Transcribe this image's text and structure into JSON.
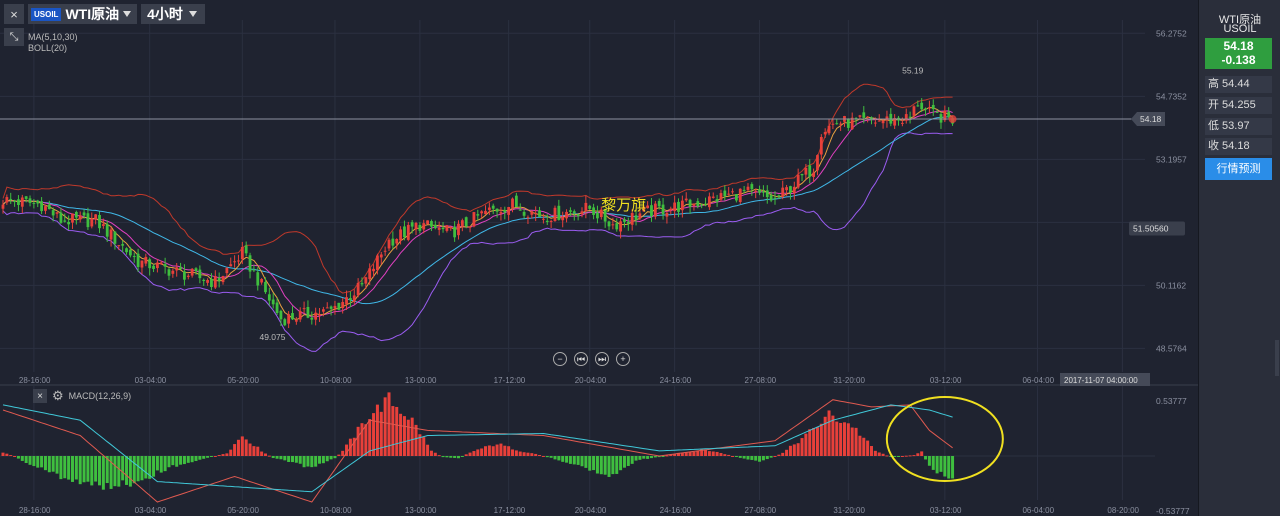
{
  "toolbar": {
    "close_label": "×",
    "symbol_badge": "USOIL",
    "symbol_name": "WTI原油",
    "period": "4小时",
    "expand_label": "⤡"
  },
  "indicators": {
    "ma": "MA(5,10,30)",
    "boll": "BOLL(20)",
    "macd": "MACD(12,26,9)"
  },
  "watermark": "黎万旗",
  "crosshair_time": "2017-11-07 04:00:00",
  "side_panel": {
    "name": "WTI原油",
    "code": "USOIL",
    "price": "54.18",
    "change": "-0.138",
    "high": "高 54.44",
    "open": "开 54.255",
    "low": "低 53.97",
    "close": "收 54.18",
    "forecast_button": "行情预测"
  },
  "colors": {
    "up": "#e8403a",
    "down": "#3fbf3f",
    "boll": "#9a5cf0",
    "ma5": "#e8a040",
    "ma10": "#e040c0",
    "ma30": "#40b8e8",
    "highlight": "#f0e020"
  },
  "chart_data": [
    {
      "type": "candlestick",
      "title": "",
      "y_ticks": [
        "56.2752",
        "54.7352",
        "53.1957",
        "51.6560",
        "50.1162",
        "48.5764"
      ],
      "y_range": [
        48.0,
        56.6
      ],
      "x_ticks": [
        "28-16:00",
        "03-04:00",
        "05-20:00",
        "10-08:00",
        "13-00:00",
        "17-12:00",
        "20-04:00",
        "24-16:00",
        "27-08:00",
        "31-20:00",
        "03-12:00",
        "06-04:00",
        "08-20:00"
      ],
      "current_price": "54.18",
      "price_tag": "51.50560",
      "annotations": {
        "high": "55.19",
        "low": "49.075"
      },
      "close_keypoints": [
        [
          0,
          52.2
        ],
        [
          10,
          52.1
        ],
        [
          15,
          51.7
        ],
        [
          24,
          51.7
        ],
        [
          35,
          50.7
        ],
        [
          55,
          50.2
        ],
        [
          62,
          50.9
        ],
        [
          72,
          49.3
        ],
        [
          85,
          49.5
        ],
        [
          93,
          50.1
        ],
        [
          100,
          51.2
        ],
        [
          108,
          51.6
        ],
        [
          116,
          51.4
        ],
        [
          125,
          51.9
        ],
        [
          132,
          52.1
        ],
        [
          140,
          51.8
        ],
        [
          152,
          52.0
        ],
        [
          158,
          51.6
        ],
        [
          166,
          51.9
        ],
        [
          178,
          52.1
        ],
        [
          192,
          52.4
        ],
        [
          200,
          52.2
        ],
        [
          210,
          53.0
        ],
        [
          212,
          53.9
        ],
        [
          216,
          54.1
        ],
        [
          222,
          54.1
        ],
        [
          228,
          54.15
        ],
        [
          235,
          54.2
        ],
        [
          237,
          54.6
        ],
        [
          240,
          54.3
        ],
        [
          246,
          54.18
        ]
      ],
      "candle_count": 247
    },
    {
      "type": "macd",
      "title": "",
      "y_ticks": [
        "0.53777",
        "-0.53777"
      ],
      "x_ticks": [
        "28-16:00",
        "03-04:00",
        "05-20:00",
        "10-08:00",
        "13-00:00",
        "17-12:00",
        "20-04:00",
        "24-16:00",
        "27-08:00",
        "31-20:00",
        "03-12:00",
        "06-04:00",
        "08-20:00"
      ],
      "histogram_keypoints": [
        [
          0,
          0.03
        ],
        [
          3,
          0
        ],
        [
          5,
          -0.05
        ],
        [
          15,
          -0.2
        ],
        [
          25,
          -0.3
        ],
        [
          34,
          -0.26
        ],
        [
          44,
          -0.1
        ],
        [
          52,
          -0.03
        ],
        [
          58,
          0.03
        ],
        [
          62,
          0.2
        ],
        [
          67,
          0.05
        ],
        [
          70,
          -0.02
        ],
        [
          75,
          -0.06
        ],
        [
          80,
          -0.12
        ],
        [
          86,
          -0.02
        ],
        [
          88,
          0.05
        ],
        [
          95,
          0.4
        ],
        [
          100,
          0.55
        ],
        [
          106,
          0.35
        ],
        [
          111,
          0.05
        ],
        [
          114,
          -0.01
        ],
        [
          118,
          -0.02
        ],
        [
          122,
          0.05
        ],
        [
          128,
          0.12
        ],
        [
          134,
          0.05
        ],
        [
          138,
          0.02
        ],
        [
          142,
          -0.02
        ],
        [
          150,
          -0.1
        ],
        [
          156,
          -0.2
        ],
        [
          160,
          -0.15
        ],
        [
          164,
          -0.04
        ],
        [
          170,
          -0.01
        ],
        [
          175,
          0.03
        ],
        [
          182,
          0.06
        ],
        [
          186,
          0.03
        ],
        [
          190,
          -0.01
        ],
        [
          196,
          -0.06
        ],
        [
          202,
          0.03
        ],
        [
          208,
          0.2
        ],
        [
          214,
          0.4
        ],
        [
          220,
          0.3
        ],
        [
          226,
          0.05
        ],
        [
          230,
          -0.01
        ],
        [
          236,
          0.01
        ],
        [
          238,
          0.04
        ],
        [
          240,
          -0.1
        ],
        [
          246,
          -0.25
        ]
      ],
      "dif_keypoints": [
        [
          0,
          0.45
        ],
        [
          20,
          0.2
        ],
        [
          40,
          -0.45
        ],
        [
          60,
          -0.2
        ],
        [
          80,
          -0.45
        ],
        [
          95,
          0.35
        ],
        [
          110,
          0.25
        ],
        [
          140,
          0.2
        ],
        [
          170,
          0.0
        ],
        [
          200,
          0.15
        ],
        [
          215,
          0.55
        ],
        [
          225,
          0.48
        ],
        [
          235,
          0.5
        ],
        [
          240,
          0.25
        ],
        [
          246,
          0.08
        ]
      ],
      "dea_keypoints": [
        [
          0,
          0.5
        ],
        [
          20,
          0.35
        ],
        [
          40,
          -0.25
        ],
        [
          60,
          -0.3
        ],
        [
          80,
          -0.35
        ],
        [
          95,
          0.05
        ],
        [
          110,
          0.2
        ],
        [
          140,
          0.22
        ],
        [
          170,
          0.05
        ],
        [
          200,
          0.1
        ],
        [
          215,
          0.35
        ],
        [
          230,
          0.5
        ],
        [
          240,
          0.45
        ],
        [
          246,
          0.38
        ]
      ]
    }
  ]
}
